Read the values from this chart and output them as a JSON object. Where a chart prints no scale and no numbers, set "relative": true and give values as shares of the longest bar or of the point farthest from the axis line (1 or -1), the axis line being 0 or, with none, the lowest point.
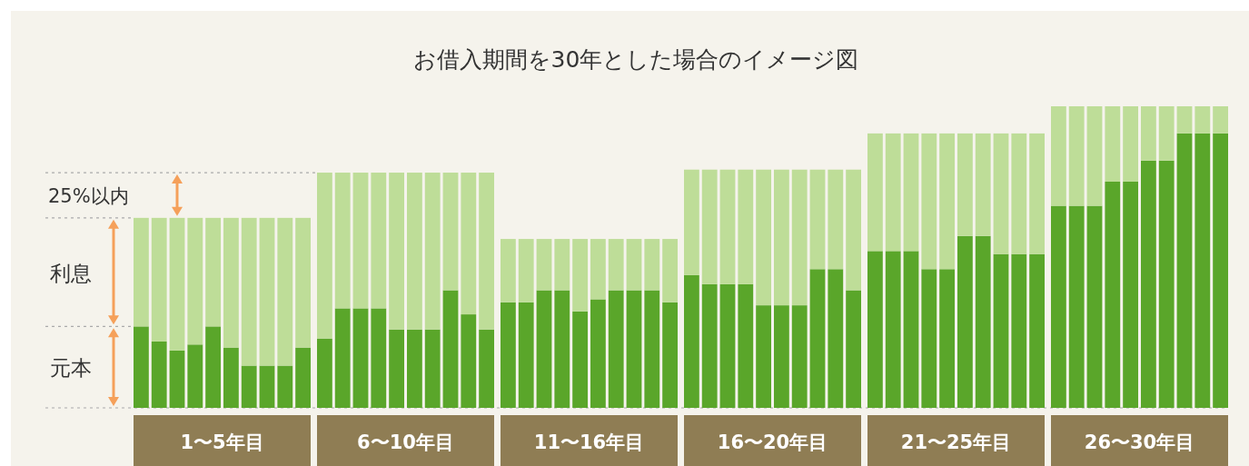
{
  "chart_data": {
    "type": "bar",
    "title": "お借入期間を30年とした場合のイメージ図",
    "stacked": true,
    "relative": true,
    "categories": [
      null,
      null,
      null,
      null,
      null,
      null,
      null,
      null,
      null,
      null,
      null,
      null,
      null,
      null,
      null,
      null,
      null,
      null,
      null,
      null,
      null,
      null,
      null,
      null,
      null,
      null,
      null,
      null,
      null,
      null,
      null,
      null,
      null,
      null,
      null,
      null,
      null,
      null,
      null,
      null,
      null,
      null,
      null,
      null,
      null,
      null,
      null,
      null,
      null,
      null,
      null,
      null,
      null,
      null,
      null,
      null,
      null,
      null,
      null,
      null
    ],
    "series": [
      {
        "name": "元本",
        "color": "#5aa62a",
        "values": [
          0.27,
          0.22,
          0.19,
          0.21,
          0.27,
          0.2,
          0.14,
          0.14,
          0.14,
          0.2,
          0.23,
          0.33,
          0.33,
          0.33,
          0.26,
          0.26,
          0.26,
          0.39,
          0.31,
          0.26,
          0.35,
          0.35,
          0.39,
          0.39,
          0.32,
          0.36,
          0.39,
          0.39,
          0.39,
          0.35,
          0.44,
          0.41,
          0.41,
          0.41,
          0.34,
          0.34,
          0.34,
          0.46,
          0.46,
          0.39,
          0.52,
          0.52,
          0.52,
          0.46,
          0.46,
          0.57,
          0.57,
          0.51,
          0.51,
          0.51,
          0.67,
          0.67,
          0.67,
          0.75,
          0.75,
          0.82,
          0.82,
          0.91,
          0.91,
          0.91
        ]
      },
      {
        "name": "利息",
        "color": "#bedd98",
        "values": [
          0.36,
          0.41,
          0.44,
          0.42,
          0.36,
          0.43,
          0.49,
          0.49,
          0.49,
          0.43,
          0.55,
          0.45,
          0.45,
          0.45,
          0.52,
          0.52,
          0.52,
          0.39,
          0.47,
          0.52,
          0.21,
          0.21,
          0.17,
          0.17,
          0.24,
          0.2,
          0.17,
          0.17,
          0.17,
          0.21,
          0.35,
          0.38,
          0.38,
          0.38,
          0.45,
          0.45,
          0.45,
          0.33,
          0.33,
          0.4,
          0.39,
          0.39,
          0.39,
          0.45,
          0.45,
          0.34,
          0.34,
          0.4,
          0.4,
          0.4,
          0.33,
          0.33,
          0.33,
          0.25,
          0.25,
          0.18,
          0.18,
          0.09,
          0.09,
          0.09
        ]
      }
    ],
    "annotations": [
      "25%以内",
      "1〜5年目",
      "6〜10年目",
      "11〜16年目",
      "16〜20年目",
      "21〜25年目",
      "26〜30年目"
    ]
  }
}
